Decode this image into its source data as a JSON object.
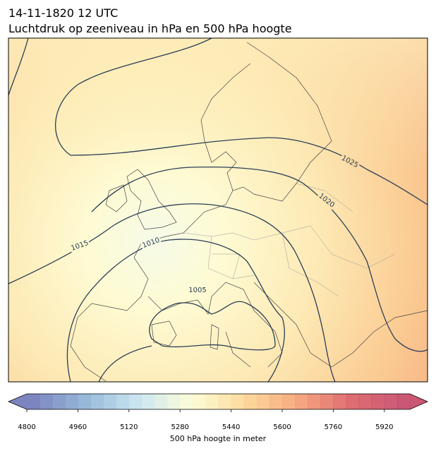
{
  "title": [
    "14-11-1820 12 UTC",
    "Luchtdruk op zeeniveau in hPa en 500 hPa hoogte"
  ],
  "map": {
    "isobar_labels": [
      1025,
      1020,
      1015,
      1010,
      1005
    ]
  },
  "colorbar": {
    "label": "500 hPa hoogte in meter",
    "range": [
      4800,
      6000
    ],
    "ticks": [
      4800,
      4960,
      5120,
      5280,
      5440,
      5600,
      5760,
      5920
    ]
  }
}
